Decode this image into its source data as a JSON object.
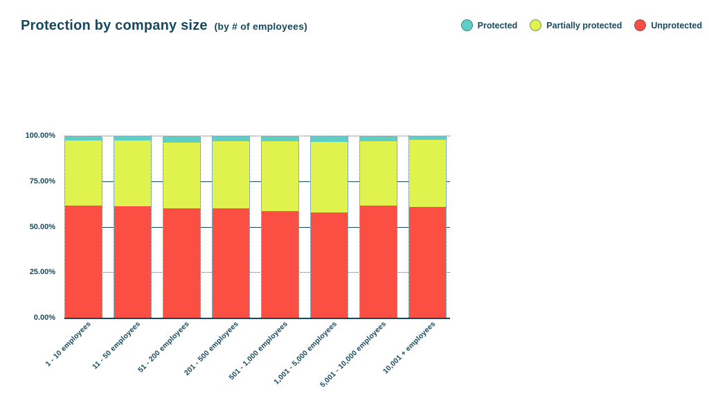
{
  "title": {
    "main": "Protection by company size",
    "sub": "(by # of employees)"
  },
  "legend": {
    "position": "top-right",
    "items": [
      {
        "label": "Protected",
        "color": "#5FCFC5"
      },
      {
        "label": "Partially protected",
        "color": "#DFF24E"
      },
      {
        "label": "Unprotected",
        "color": "#FB4F43"
      }
    ]
  },
  "chart_data": {
    "type": "bar",
    "stacked": true,
    "units": "percent",
    "title": "Protection by company size (by # of employees)",
    "categories": [
      "1 - 10 employees",
      "11 - 50 employees",
      "51 - 200 employees",
      "201 - 500 employees",
      "501 - 1,000 employees",
      "1,001 - 5,000 employees",
      "5,001 - 10,000 employees",
      "10,001 + employees"
    ],
    "series": [
      {
        "name": "Protected",
        "color": "#5FCFC5",
        "values": [
          2.3,
          2.3,
          3.4,
          2.6,
          2.6,
          3.1,
          2.6,
          2.0
        ]
      },
      {
        "name": "Partially protected",
        "color": "#DFF24E",
        "values": [
          35.7,
          36.4,
          36.1,
          36.9,
          38.5,
          39.0,
          35.4,
          37.0
        ]
      },
      {
        "name": "Unprotected",
        "color": "#FB4F43",
        "values": [
          62.0,
          61.3,
          60.5,
          60.5,
          58.9,
          57.9,
          62.0,
          61.0
        ]
      }
    ],
    "y_axis": {
      "min": 0,
      "max": 100,
      "ticks": [
        "100.00%",
        "75.00%",
        "50.00%",
        "25.00%",
        "0.00%"
      ]
    },
    "grid": "horizontal",
    "legend_position": "top-right",
    "colors": {
      "text": "#17495E",
      "grid": "#17495E"
    }
  }
}
